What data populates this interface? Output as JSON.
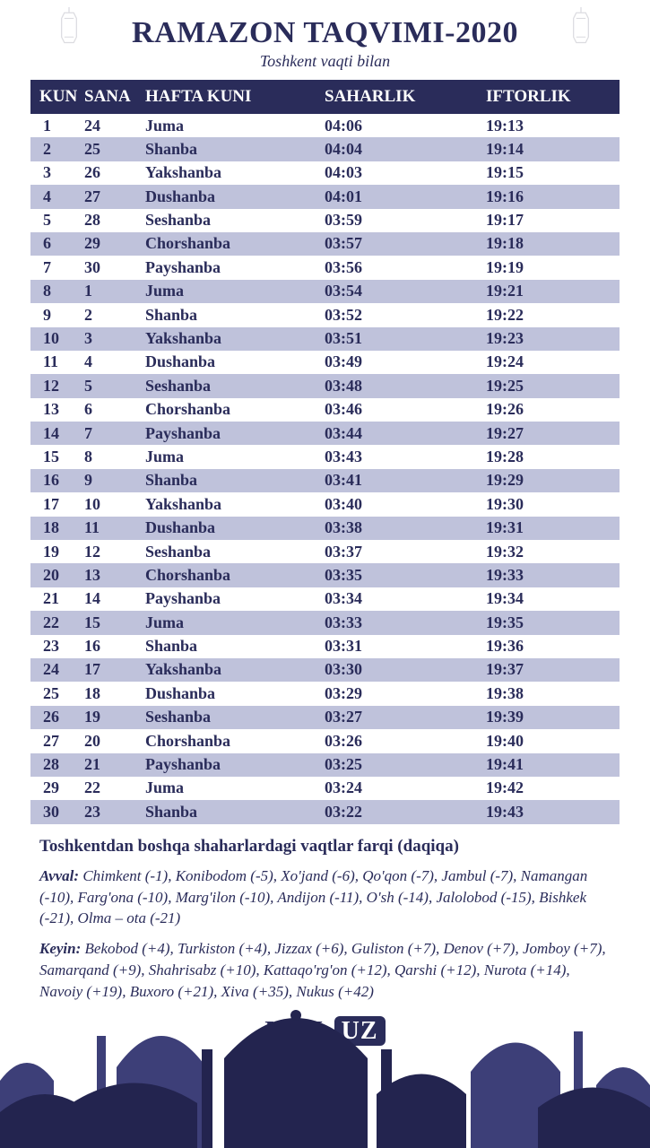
{
  "title": "RAMAZON TAQVIMI-2020",
  "subtitle": "Toshkent vaqti bilan",
  "columns": {
    "kun": "KUN",
    "sana": "SANA",
    "hafta": "HAFTA KUNI",
    "sahar": "SAHARLIK",
    "iftor": "IFTORLIK"
  },
  "colors": {
    "dark": "#2a2c5a",
    "stripe": "#bfc2db",
    "white": "#ffffff"
  },
  "rows": [
    {
      "kun": "1",
      "sana": "24",
      "hafta": "Juma",
      "sahar": "04:06",
      "iftor": "19:13"
    },
    {
      "kun": "2",
      "sana": "25",
      "hafta": "Shanba",
      "sahar": "04:04",
      "iftor": "19:14"
    },
    {
      "kun": "3",
      "sana": "26",
      "hafta": "Yakshanba",
      "sahar": "04:03",
      "iftor": "19:15"
    },
    {
      "kun": "4",
      "sana": "27",
      "hafta": "Dushanba",
      "sahar": "04:01",
      "iftor": "19:16"
    },
    {
      "kun": "5",
      "sana": "28",
      "hafta": "Seshanba",
      "sahar": "03:59",
      "iftor": "19:17"
    },
    {
      "kun": "6",
      "sana": "29",
      "hafta": "Chorshanba",
      "sahar": "03:57",
      "iftor": "19:18"
    },
    {
      "kun": "7",
      "sana": "30",
      "hafta": "Payshanba",
      "sahar": "03:56",
      "iftor": "19:19"
    },
    {
      "kun": "8",
      "sana": "1",
      "hafta": "Juma",
      "sahar": "03:54",
      "iftor": "19:21"
    },
    {
      "kun": "9",
      "sana": "2",
      "hafta": "Shanba",
      "sahar": "03:52",
      "iftor": "19:22"
    },
    {
      "kun": "10",
      "sana": "3",
      "hafta": "Yakshanba",
      "sahar": "03:51",
      "iftor": "19:23"
    },
    {
      "kun": "11",
      "sana": "4",
      "hafta": "Dushanba",
      "sahar": "03:49",
      "iftor": "19:24"
    },
    {
      "kun": "12",
      "sana": "5",
      "hafta": "Seshanba",
      "sahar": "03:48",
      "iftor": "19:25"
    },
    {
      "kun": "13",
      "sana": "6",
      "hafta": "Chorshanba",
      "sahar": "03:46",
      "iftor": "19:26"
    },
    {
      "kun": "14",
      "sana": "7",
      "hafta": "Payshanba",
      "sahar": "03:44",
      "iftor": "19:27"
    },
    {
      "kun": "15",
      "sana": "8",
      "hafta": "Juma",
      "sahar": "03:43",
      "iftor": "19:28"
    },
    {
      "kun": "16",
      "sana": "9",
      "hafta": "Shanba",
      "sahar": "03:41",
      "iftor": "19:29"
    },
    {
      "kun": "17",
      "sana": "10",
      "hafta": "Yakshanba",
      "sahar": "03:40",
      "iftor": "19:30"
    },
    {
      "kun": "18",
      "sana": "11",
      "hafta": "Dushanba",
      "sahar": "03:38",
      "iftor": "19:31"
    },
    {
      "kun": "19",
      "sana": "12",
      "hafta": "Seshanba",
      "sahar": "03:37",
      "iftor": "19:32"
    },
    {
      "kun": "20",
      "sana": "13",
      "hafta": "Chorshanba",
      "sahar": "03:35",
      "iftor": "19:33"
    },
    {
      "kun": "21",
      "sana": "14",
      "hafta": "Payshanba",
      "sahar": "03:34",
      "iftor": "19:34"
    },
    {
      "kun": "22",
      "sana": "15",
      "hafta": "Juma",
      "sahar": "03:33",
      "iftor": "19:35"
    },
    {
      "kun": "23",
      "sana": "16",
      "hafta": "Shanba",
      "sahar": "03:31",
      "iftor": "19:36"
    },
    {
      "kun": "24",
      "sana": "17",
      "hafta": "Yakshanba",
      "sahar": "03:30",
      "iftor": "19:37"
    },
    {
      "kun": "25",
      "sana": "18",
      "hafta": "Dushanba",
      "sahar": "03:29",
      "iftor": "19:38"
    },
    {
      "kun": "26",
      "sana": "19",
      "hafta": "Seshanba",
      "sahar": "03:27",
      "iftor": "19:39"
    },
    {
      "kun": "27",
      "sana": "20",
      "hafta": "Chorshanba",
      "sahar": "03:26",
      "iftor": "19:40"
    },
    {
      "kun": "28",
      "sana": "21",
      "hafta": "Payshanba",
      "sahar": "03:25",
      "iftor": "19:41"
    },
    {
      "kun": "29",
      "sana": "22",
      "hafta": "Juma",
      "sahar": "03:24",
      "iftor": "19:42"
    },
    {
      "kun": "30",
      "sana": "23",
      "hafta": "Shanba",
      "sahar": "03:22",
      "iftor": "19:43"
    }
  ],
  "footer": {
    "title": "Toshkentdan boshqa shaharlardagi vaqtlar farqi (daqiqa)",
    "avval_label": "Avval:",
    "avval_text": " Chimkent (-1), Konibodom (-5), Xo'jand (-6), Qo'qon (-7), Jambul (-7), Namangan (-10), Farg'ona (-10), Marg'ilon (-10), Andijon (-11), O'sh (-14), Jalolobod (-15), Bishkek (-21), Olma – ota (-21)",
    "keyin_label": "Keyin:",
    "keyin_text": " Bekobod (+4), Turkiston (+4), Jizzax (+6), Guliston (+7), Denov (+7), Jomboy (+7), Samarqand (+9), Shahrisabz (+10), Kattaqo'rg'on (+12), Qarshi (+12), Nurota (+14), Navoiy (+19), Buxoro (+21), Xiva (+35), Nukus (+42)"
  },
  "logo": {
    "kun": "KUN.",
    "uz": "UZ"
  }
}
